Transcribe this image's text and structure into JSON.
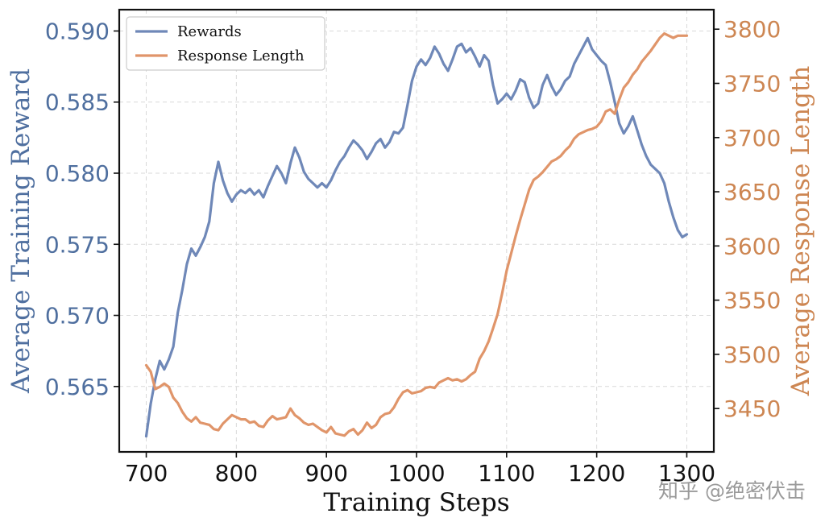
{
  "chart_data": {
    "type": "line",
    "xlabel": "Training Steps",
    "ylabel_left": "Average Training Reward",
    "ylabel_right": "Average Response Length",
    "xlim": [
      670,
      1330
    ],
    "ylim_left": [
      0.5604,
      0.5915
    ],
    "ylim_right": [
      3410,
      3818
    ],
    "xticks": [
      700,
      800,
      900,
      1000,
      1100,
      1200,
      1300
    ],
    "yticks_left": [
      0.565,
      0.57,
      0.575,
      0.58,
      0.585,
      0.59
    ],
    "ytick_labels_left": [
      "0.565",
      "0.570",
      "0.575",
      "0.580",
      "0.585",
      "0.590"
    ],
    "yticks_right": [
      3450,
      3500,
      3550,
      3600,
      3650,
      3700,
      3750,
      3800
    ],
    "grid": true,
    "legend_position": "upper-left",
    "colors": {
      "rewards": "#6f88b8",
      "response_length": "#e0956a",
      "left_axis_text": "#4f6f9f",
      "right_axis_text": "#cd8652"
    },
    "series": [
      {
        "name": "Rewards",
        "axis": "left",
        "x": [
          700,
          705,
          710,
          715,
          720,
          725,
          730,
          735,
          740,
          745,
          750,
          755,
          760,
          765,
          770,
          775,
          780,
          785,
          790,
          795,
          800,
          805,
          810,
          815,
          820,
          825,
          830,
          835,
          840,
          845,
          850,
          855,
          860,
          865,
          870,
          875,
          880,
          885,
          890,
          895,
          900,
          905,
          910,
          915,
          920,
          925,
          930,
          935,
          940,
          945,
          950,
          955,
          960,
          965,
          970,
          975,
          980,
          985,
          990,
          995,
          1000,
          1005,
          1010,
          1015,
          1020,
          1025,
          1030,
          1035,
          1040,
          1045,
          1050,
          1055,
          1060,
          1065,
          1070,
          1075,
          1080,
          1085,
          1090,
          1095,
          1100,
          1105,
          1110,
          1115,
          1120,
          1125,
          1130,
          1135,
          1140,
          1145,
          1150,
          1155,
          1160,
          1165,
          1170,
          1175,
          1180,
          1185,
          1190,
          1195,
          1200,
          1205,
          1210,
          1215,
          1220,
          1225,
          1230,
          1235,
          1240,
          1245,
          1250,
          1255,
          1260,
          1265,
          1270,
          1275,
          1280,
          1285,
          1290,
          1295,
          1300
        ],
        "values": [
          0.5615,
          0.5638,
          0.5655,
          0.5668,
          0.5662,
          0.5669,
          0.5678,
          0.5702,
          0.5718,
          0.5736,
          0.5747,
          0.5742,
          0.5748,
          0.5755,
          0.5766,
          0.5793,
          0.5808,
          0.5795,
          0.5786,
          0.578,
          0.5785,
          0.5788,
          0.5786,
          0.5789,
          0.5785,
          0.5788,
          0.5783,
          0.5791,
          0.5798,
          0.5805,
          0.58,
          0.5793,
          0.5807,
          0.5818,
          0.5811,
          0.5801,
          0.5796,
          0.5793,
          0.579,
          0.5793,
          0.579,
          0.5795,
          0.5802,
          0.5808,
          0.5812,
          0.5818,
          0.5823,
          0.582,
          0.5816,
          0.581,
          0.5815,
          0.5821,
          0.5824,
          0.5818,
          0.5822,
          0.5829,
          0.5828,
          0.5832,
          0.5848,
          0.5865,
          0.5875,
          0.588,
          0.5876,
          0.5881,
          0.5889,
          0.5884,
          0.5877,
          0.5872,
          0.588,
          0.5889,
          0.5891,
          0.5885,
          0.5888,
          0.5882,
          0.5875,
          0.5883,
          0.5879,
          0.5862,
          0.5849,
          0.5852,
          0.5856,
          0.5852,
          0.5858,
          0.5866,
          0.5864,
          0.5853,
          0.5846,
          0.5849,
          0.5862,
          0.5869,
          0.5861,
          0.5855,
          0.5859,
          0.5865,
          0.5868,
          0.5877,
          0.5883,
          0.5889,
          0.5895,
          0.5887,
          0.5883,
          0.5879,
          0.5876,
          0.5864,
          0.585,
          0.5835,
          0.5828,
          0.5833,
          0.584,
          0.583,
          0.582,
          0.5812,
          0.5806,
          0.5803,
          0.58,
          0.5793,
          0.578,
          0.5769,
          0.576,
          0.5755,
          0.5757
        ]
      },
      {
        "name": "Response Length",
        "axis": "right",
        "x": [
          700,
          705,
          710,
          715,
          720,
          725,
          730,
          735,
          740,
          745,
          750,
          755,
          760,
          765,
          770,
          775,
          780,
          785,
          790,
          795,
          800,
          805,
          810,
          815,
          820,
          825,
          830,
          835,
          840,
          845,
          850,
          855,
          860,
          865,
          870,
          875,
          880,
          885,
          890,
          895,
          900,
          905,
          910,
          915,
          920,
          925,
          930,
          935,
          940,
          945,
          950,
          955,
          960,
          965,
          970,
          975,
          980,
          985,
          990,
          995,
          1000,
          1005,
          1010,
          1015,
          1020,
          1025,
          1030,
          1035,
          1040,
          1045,
          1050,
          1055,
          1060,
          1065,
          1070,
          1075,
          1080,
          1085,
          1090,
          1095,
          1100,
          1105,
          1110,
          1115,
          1120,
          1125,
          1130,
          1135,
          1140,
          1145,
          1150,
          1155,
          1160,
          1165,
          1170,
          1175,
          1180,
          1185,
          1190,
          1195,
          1200,
          1205,
          1210,
          1215,
          1220,
          1225,
          1230,
          1235,
          1240,
          1245,
          1250,
          1255,
          1260,
          1265,
          1270,
          1275,
          1280,
          1285,
          1290,
          1295,
          1300
        ],
        "values": [
          3490,
          3484,
          3468,
          3470,
          3473,
          3470,
          3460,
          3455,
          3447,
          3441,
          3438,
          3442,
          3437,
          3436,
          3435,
          3431,
          3430,
          3436,
          3440,
          3444,
          3442,
          3440,
          3440,
          3437,
          3438,
          3434,
          3433,
          3439,
          3443,
          3440,
          3441,
          3442,
          3450,
          3444,
          3441,
          3437,
          3435,
          3436,
          3433,
          3430,
          3428,
          3433,
          3427,
          3426,
          3425,
          3429,
          3431,
          3426,
          3430,
          3437,
          3432,
          3435,
          3442,
          3445,
          3446,
          3451,
          3459,
          3465,
          3467,
          3464,
          3465,
          3466,
          3469,
          3470,
          3469,
          3474,
          3476,
          3478,
          3476,
          3477,
          3475,
          3477,
          3481,
          3484,
          3496,
          3503,
          3512,
          3524,
          3537,
          3556,
          3577,
          3593,
          3609,
          3624,
          3638,
          3652,
          3661,
          3664,
          3668,
          3673,
          3678,
          3680,
          3683,
          3688,
          3692,
          3699,
          3703,
          3705,
          3707,
          3708,
          3710,
          3715,
          3724,
          3726,
          3722,
          3735,
          3746,
          3751,
          3758,
          3763,
          3770,
          3775,
          3780,
          3786,
          3792,
          3796,
          3794,
          3792,
          3794,
          3794,
          3794
        ]
      }
    ]
  },
  "watermark": "知乎 @绝密伏击"
}
